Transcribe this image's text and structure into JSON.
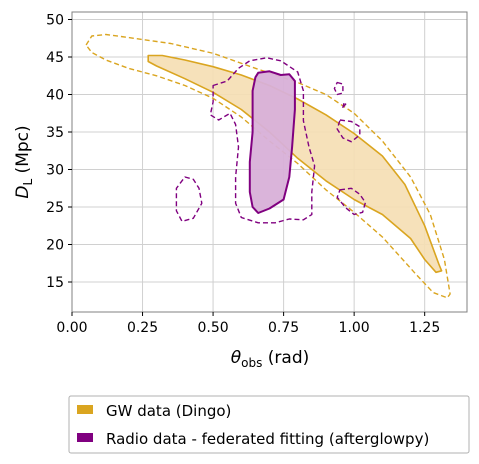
{
  "chart_data": {
    "type": "contour",
    "xlabel_main": "θ",
    "xlabel_sub": "obs",
    "xlabel_unit": " (rad)",
    "ylabel_main": "D",
    "ylabel_sub": "L",
    "ylabel_unit": " (Mpc)",
    "xlim": [
      0.0,
      1.4
    ],
    "ylim": [
      11,
      51
    ],
    "xticks": [
      0.0,
      0.25,
      0.5,
      0.75,
      1.0,
      1.25
    ],
    "xtick_labels": [
      "0.00",
      "0.25",
      "0.50",
      "0.75",
      "1.00",
      "1.25"
    ],
    "yticks": [
      15,
      20,
      25,
      30,
      35,
      40,
      45,
      50
    ],
    "ytick_labels": [
      "15",
      "20",
      "25",
      "30",
      "35",
      "40",
      "45",
      "50"
    ],
    "grid": true,
    "legend_position": "bottom-outside",
    "legend": [
      {
        "label": "GW data (Dingo)",
        "color": "#DAA520"
      },
      {
        "label": "Radio data - federated fitting (afterglowpy)",
        "color": "#800080"
      }
    ],
    "series": [
      {
        "name": "GW data (Dingo)",
        "color": "#DAA520",
        "fill": "#F5DEB3",
        "inner": [
          [
            0.27,
            45.2
          ],
          [
            0.32,
            45.2
          ],
          [
            0.4,
            44.6
          ],
          [
            0.5,
            43.7
          ],
          [
            0.6,
            42.6
          ],
          [
            0.7,
            41.2
          ],
          [
            0.8,
            39.4
          ],
          [
            0.9,
            37.3
          ],
          [
            1.0,
            34.8
          ],
          [
            1.1,
            31.8
          ],
          [
            1.18,
            28.0
          ],
          [
            1.25,
            22.5
          ],
          [
            1.3,
            17.4
          ],
          [
            1.31,
            16.5
          ],
          [
            1.29,
            16.3
          ],
          [
            1.25,
            18.0
          ],
          [
            1.2,
            20.8
          ],
          [
            1.1,
            24.0
          ],
          [
            1.0,
            26.0
          ],
          [
            0.9,
            28.5
          ],
          [
            0.8,
            31.5
          ],
          [
            0.7,
            35.0
          ],
          [
            0.6,
            38.0
          ],
          [
            0.5,
            40.3
          ],
          [
            0.4,
            42.1
          ],
          [
            0.3,
            43.8
          ],
          [
            0.27,
            44.4
          ]
        ],
        "outer": [
          [
            0.05,
            46.6
          ],
          [
            0.07,
            47.8
          ],
          [
            0.12,
            48.0
          ],
          [
            0.2,
            47.6
          ],
          [
            0.35,
            46.8
          ],
          [
            0.5,
            45.5
          ],
          [
            0.65,
            43.5
          ],
          [
            0.8,
            41.6
          ],
          [
            0.9,
            40.0
          ],
          [
            1.0,
            37.5
          ],
          [
            1.1,
            33.8
          ],
          [
            1.2,
            29.0
          ],
          [
            1.27,
            24.0
          ],
          [
            1.32,
            18.0
          ],
          [
            1.34,
            13.4
          ],
          [
            1.33,
            12.9
          ],
          [
            1.28,
            13.6
          ],
          [
            1.22,
            16.0
          ],
          [
            1.1,
            21.0
          ],
          [
            1.0,
            24.3
          ],
          [
            0.9,
            27.3
          ],
          [
            0.8,
            30.8
          ],
          [
            0.7,
            33.8
          ],
          [
            0.6,
            37.0
          ],
          [
            0.5,
            39.5
          ],
          [
            0.4,
            41.2
          ],
          [
            0.3,
            42.5
          ],
          [
            0.2,
            43.5
          ],
          [
            0.12,
            44.6
          ],
          [
            0.07,
            45.6
          ]
        ]
      },
      {
        "name": "Radio data - federated fitting (afterglowpy)",
        "color": "#800080",
        "fill": "#D8B0D8",
        "inner": [
          [
            0.66,
            42.9
          ],
          [
            0.7,
            43.1
          ],
          [
            0.74,
            42.6
          ],
          [
            0.77,
            42.7
          ],
          [
            0.79,
            41.8
          ],
          [
            0.79,
            38.0
          ],
          [
            0.78,
            33.0
          ],
          [
            0.77,
            29.0
          ],
          [
            0.75,
            26.0
          ],
          [
            0.7,
            24.8
          ],
          [
            0.66,
            24.2
          ],
          [
            0.64,
            25.0
          ],
          [
            0.63,
            27.0
          ],
          [
            0.63,
            31.0
          ],
          [
            0.64,
            35.0
          ],
          [
            0.64,
            40.5
          ],
          [
            0.65,
            42.3
          ]
        ],
        "outer": [
          [
            [
              0.5,
              41.2
            ],
            [
              0.55,
              41.8
            ],
            [
              0.59,
              43.5
            ],
            [
              0.63,
              44.5
            ],
            [
              0.69,
              44.9
            ],
            [
              0.74,
              44.5
            ],
            [
              0.8,
              43.0
            ],
            [
              0.82,
              40.5
            ],
            [
              0.82,
              36.5
            ],
            [
              0.84,
              33.0
            ],
            [
              0.86,
              30.5
            ],
            [
              0.85,
              27.0
            ],
            [
              0.85,
              24.0
            ],
            [
              0.82,
              23.3
            ],
            [
              0.77,
              23.4
            ],
            [
              0.72,
              22.9
            ],
            [
              0.66,
              22.9
            ],
            [
              0.6,
              23.6
            ],
            [
              0.58,
              25.5
            ],
            [
              0.58,
              29.0
            ],
            [
              0.59,
              33.0
            ],
            [
              0.58,
              36.0
            ],
            [
              0.56,
              37.5
            ],
            [
              0.52,
              36.6
            ],
            [
              0.49,
              37.3
            ],
            [
              0.5,
              39.0
            ]
          ],
          [
            [
              0.4,
              29.0
            ],
            [
              0.43,
              28.7
            ],
            [
              0.45,
              27.5
            ],
            [
              0.46,
              25.5
            ],
            [
              0.43,
              23.5
            ],
            [
              0.39,
              23.1
            ],
            [
              0.37,
              24.5
            ],
            [
              0.37,
              27.5
            ]
          ],
          [
            [
              0.95,
              36.6
            ],
            [
              0.99,
              36.4
            ],
            [
              1.02,
              35.7
            ],
            [
              1.02,
              34.6
            ],
            [
              0.99,
              33.7
            ],
            [
              0.96,
              34.2
            ],
            [
              0.94,
              35.4
            ]
          ],
          [
            [
              0.94,
              41.6
            ],
            [
              0.96,
              41.4
            ],
            [
              0.96,
              40.2
            ],
            [
              0.94,
              40.0
            ],
            [
              0.93,
              40.8
            ]
          ],
          [
            [
              0.96,
              38.3
            ],
            [
              0.97,
              38.7
            ],
            [
              0.965,
              39.0
            ]
          ],
          [
            [
              0.95,
              27.3
            ],
            [
              0.99,
              27.5
            ],
            [
              1.02,
              26.7
            ],
            [
              1.04,
              25.6
            ],
            [
              1.03,
              24.3
            ],
            [
              1.0,
              24.0
            ],
            [
              0.97,
              24.9
            ],
            [
              0.94,
              26.3
            ]
          ]
        ]
      }
    ]
  }
}
